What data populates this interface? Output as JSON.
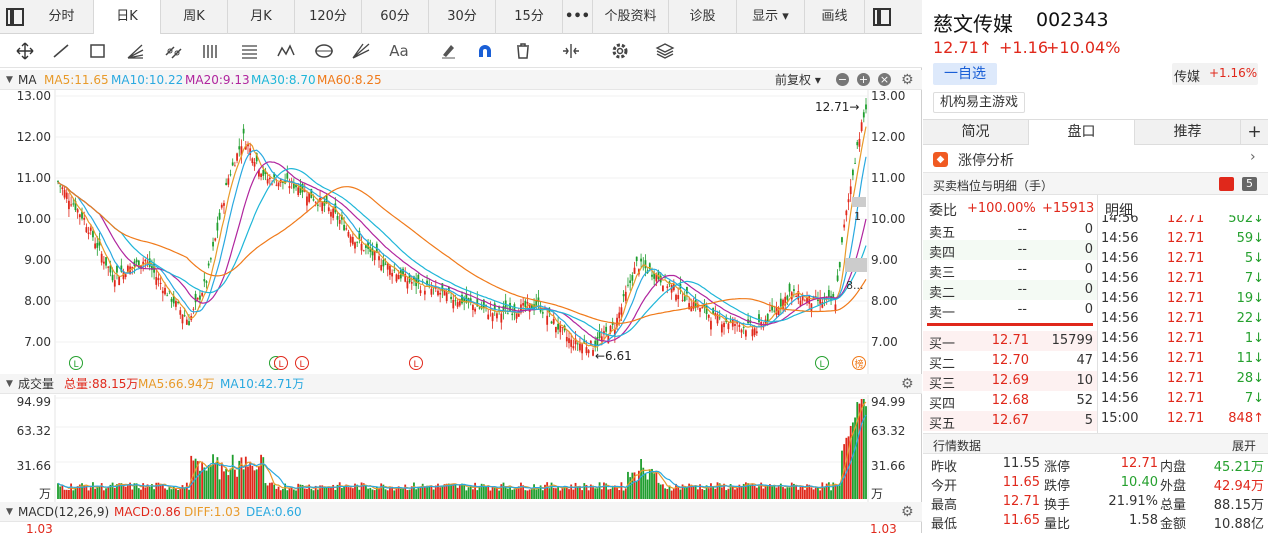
{
  "tabs": [
    "分时",
    "日K",
    "周K",
    "月K",
    "120分",
    "60分",
    "30分",
    "15分",
    "•••",
    "个股资料",
    "诊股",
    "显示 ▾",
    "画线"
  ],
  "active_tab": "日K",
  "ma_header": {
    "label": "MA",
    "ma5": "MA5:11.65",
    "ma10": "MA10:10.22",
    "ma20": "MA20:9.13",
    "ma30": "MA30:8.70",
    "ma60": "MA60:8.25",
    "fq": "前复权 ▾"
  },
  "price_axis": [
    "13.00",
    "12.00",
    "11.00",
    "10.00",
    "9.00",
    "8.00",
    "7.00"
  ],
  "annot": {
    "high": "12.71→",
    "low": "←6.61",
    "cut1": "1",
    "cut2": "8..."
  },
  "markers": [
    "L",
    "L",
    "L",
    "L",
    "L",
    "L",
    "榜"
  ],
  "vol_header": {
    "label": "成交量",
    "total": "总量:88.15万",
    "ma5": "MA5:66.94万",
    "ma10": "MA10:42.71万"
  },
  "vol_axis": [
    "94.99",
    "63.32",
    "31.66",
    "万"
  ],
  "macd_header": {
    "label": "MACD(12,26,9)",
    "macd": "MACD:0.86",
    "diff": "DIFF:1.03",
    "dea": "DEA:0.60"
  },
  "macd_axis": "1.03",
  "colors": {
    "ma5": "#e89a2a",
    "ma10": "#2aa9e0",
    "ma20": "#b0259e",
    "ma30": "#1fb6d8",
    "ma60": "#f07a1a",
    "up": "#e0281b",
    "down": "#1f9e2e"
  },
  "chart_data": {
    "type": "candlestick",
    "ylim": [
      6.61,
      12.71
    ],
    "last_price": 12.71,
    "low_price": 6.61,
    "volume_ylim": [
      0,
      94.99
    ],
    "volume_unit": "万"
  },
  "stock": {
    "name": "慈文传媒",
    "code": "002343",
    "price": "12.71↑",
    "change": "+1.16",
    "pct": "+10.04%",
    "add": "一自选",
    "sector": "传媒",
    "sector_pct": "+1.16%",
    "tag": "机构易主游戏"
  },
  "rtabs": [
    "简况",
    "盘口",
    "推荐",
    "+"
  ],
  "limit": "涨停分析",
  "depth_title": "买卖档位与明细（手）",
  "depth_badge": "5",
  "weibi": {
    "label": "委比",
    "pct": "+100.00%",
    "val": "+15913"
  },
  "detail_label": "明细",
  "asks": [
    {
      "name": "卖五",
      "price": "--",
      "vol": "0"
    },
    {
      "name": "卖四",
      "price": "--",
      "vol": "0"
    },
    {
      "name": "卖三",
      "price": "--",
      "vol": "0"
    },
    {
      "name": "卖二",
      "price": "--",
      "vol": "0"
    },
    {
      "name": "卖一",
      "price": "--",
      "vol": "0"
    }
  ],
  "bids": [
    {
      "name": "买一",
      "price": "12.71",
      "vol": "15799"
    },
    {
      "name": "买二",
      "price": "12.70",
      "vol": "47"
    },
    {
      "name": "买三",
      "price": "12.69",
      "vol": "10"
    },
    {
      "name": "买四",
      "price": "12.68",
      "vol": "52"
    },
    {
      "name": "买五",
      "price": "12.67",
      "vol": "5"
    }
  ],
  "ticks": [
    {
      "t": "14:56",
      "p": "12.71",
      "v": "502↓"
    },
    {
      "t": "14:56",
      "p": "12.71",
      "v": "59↓"
    },
    {
      "t": "14:56",
      "p": "12.71",
      "v": "5↓"
    },
    {
      "t": "14:56",
      "p": "12.71",
      "v": "7↓"
    },
    {
      "t": "14:56",
      "p": "12.71",
      "v": "19↓"
    },
    {
      "t": "14:56",
      "p": "12.71",
      "v": "22↓"
    },
    {
      "t": "14:56",
      "p": "12.71",
      "v": "1↓"
    },
    {
      "t": "14:56",
      "p": "12.71",
      "v": "11↓"
    },
    {
      "t": "14:56",
      "p": "12.71",
      "v": "28↓"
    },
    {
      "t": "14:56",
      "p": "12.71",
      "v": "7↓"
    },
    {
      "t": "15:00",
      "p": "12.71",
      "v": "848↑"
    }
  ],
  "quote_title": "行情数据",
  "expand": "展开",
  "quote": [
    [
      "昨收",
      "11.55",
      "涨停",
      "12.71",
      "内盘",
      "45.21万"
    ],
    [
      "今开",
      "11.65",
      "跌停",
      "10.40",
      "外盘",
      "42.94万"
    ],
    [
      "最高",
      "12.71",
      "换手",
      "21.91%",
      "总量",
      "88.15万"
    ],
    [
      "最低",
      "11.65",
      "量比",
      "1.58",
      "金额",
      "10.88亿"
    ]
  ]
}
